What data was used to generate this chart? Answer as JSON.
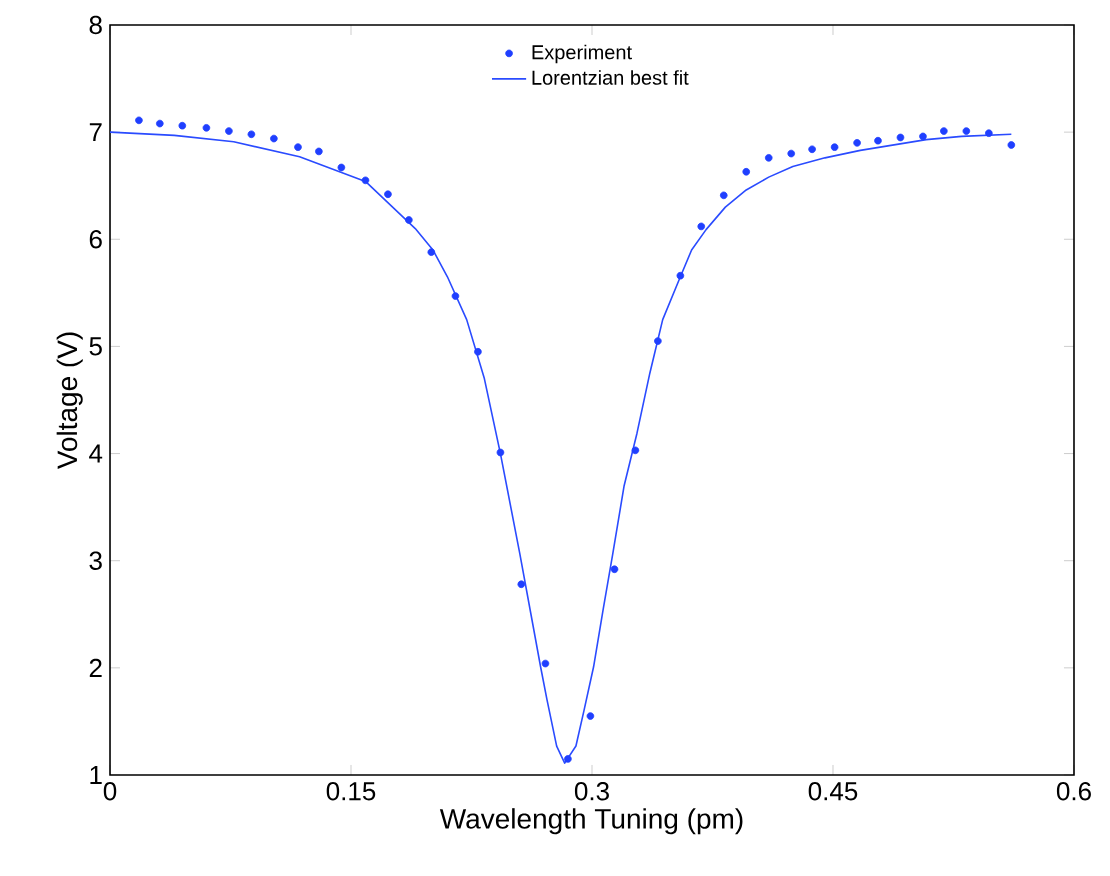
{
  "chart_data": {
    "type": "scatter",
    "xlabel": "Wavelength Tuning (pm)",
    "ylabel": "Voltage (V)",
    "xlim": [
      0,
      0.6
    ],
    "ylim": [
      1,
      8
    ],
    "xticks": [
      0,
      0.15,
      0.3,
      0.45,
      0.6
    ],
    "yticks": [
      1,
      2,
      3,
      4,
      5,
      6,
      7,
      8
    ],
    "grid": false,
    "legend": "top",
    "series": [
      {
        "name": "Experiment",
        "type": "scatter",
        "marker": "circle",
        "color": "#1f3fff",
        "x": [
          0.018,
          0.031,
          0.045,
          0.06,
          0.074,
          0.088,
          0.102,
          0.117,
          0.13,
          0.144,
          0.159,
          0.173,
          0.186,
          0.2,
          0.215,
          0.229,
          0.243,
          0.256,
          0.271,
          0.285,
          0.299,
          0.314,
          0.327,
          0.341,
          0.355,
          0.368,
          0.382,
          0.396,
          0.41,
          0.424,
          0.437,
          0.451,
          0.465,
          0.478,
          0.492,
          0.506,
          0.519,
          0.533,
          0.547,
          0.561
        ],
        "values": [
          7.11,
          7.08,
          7.06,
          7.04,
          7.01,
          6.98,
          6.94,
          6.86,
          6.82,
          6.67,
          6.55,
          6.42,
          6.18,
          5.88,
          5.47,
          4.95,
          4.01,
          2.78,
          2.04,
          1.15,
          1.55,
          2.92,
          4.03,
          5.05,
          5.66,
          6.12,
          6.41,
          6.63,
          6.76,
          6.8,
          6.84,
          6.86,
          6.9,
          6.92,
          6.95,
          6.96,
          7.01,
          7.01,
          6.99,
          6.88
        ]
      },
      {
        "name": "Lorentzian best fit",
        "type": "line",
        "marker": "none",
        "line_style": "solid",
        "color": "#2a4bff",
        "x": [
          0.0,
          0.04,
          0.077,
          0.118,
          0.159,
          0.19,
          0.201,
          0.21,
          0.222,
          0.233,
          0.243,
          0.255,
          0.262,
          0.268,
          0.272,
          0.278,
          0.283,
          0.29,
          0.295,
          0.301,
          0.307,
          0.313,
          0.32,
          0.328,
          0.336,
          0.344,
          0.355,
          0.362,
          0.371,
          0.383,
          0.396,
          0.41,
          0.425,
          0.445,
          0.467,
          0.508,
          0.53,
          0.561
        ],
        "values": [
          7.0,
          6.97,
          6.91,
          6.77,
          6.54,
          6.1,
          5.9,
          5.65,
          5.25,
          4.7,
          4.0,
          3.07,
          2.5,
          2.01,
          1.7,
          1.27,
          1.11,
          1.27,
          1.6,
          2.01,
          2.55,
          3.07,
          3.7,
          4.19,
          4.75,
          5.25,
          5.65,
          5.9,
          6.09,
          6.3,
          6.46,
          6.58,
          6.68,
          6.76,
          6.83,
          6.93,
          6.96,
          6.98
        ]
      }
    ]
  }
}
